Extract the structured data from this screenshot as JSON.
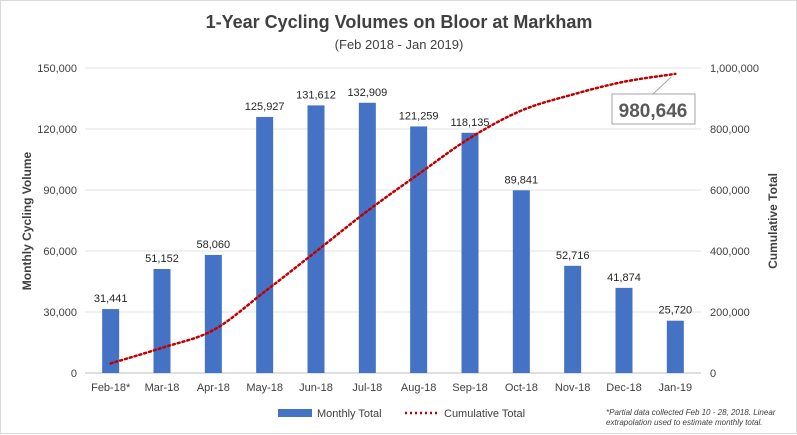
{
  "chart_data": {
    "type": "bar",
    "title": "1-Year Cycling Volumes on Bloor at Markham",
    "subtitle": "(Feb 2018  - Jan 2019)",
    "categories": [
      "Feb-18*",
      "Mar-18",
      "Apr-18",
      "May-18",
      "Jun-18",
      "Jul-18",
      "Aug-18",
      "Sep-18",
      "Oct-18",
      "Nov-18",
      "Dec-18",
      "Jan-19"
    ],
    "series": [
      {
        "name": "Monthly Total",
        "type": "bar",
        "axis": "left",
        "color": "#4472c4",
        "values": [
          31441,
          51152,
          58060,
          125927,
          131612,
          132909,
          121259,
          118135,
          89841,
          52716,
          41874,
          25720
        ],
        "labels": [
          "31,441",
          "51,152",
          "58,060",
          "125,927",
          "131,612",
          "132,909",
          "121,259",
          "118,135",
          "89,841",
          "52,716",
          "41,874",
          "25,720"
        ]
      },
      {
        "name": "Cumulative Total",
        "type": "line",
        "axis": "right",
        "color": "#c00000",
        "values": [
          31441,
          82593,
          140653,
          266580,
          398192,
          531101,
          652360,
          770495,
          860336,
          913052,
          954926,
          980646
        ]
      }
    ],
    "ylabel": "Monthly Cycling Volume",
    "y2label": "Cumulative Total",
    "ylim": [
      0,
      150000
    ],
    "y2lim": [
      0,
      1000000
    ],
    "yticks": [
      0,
      30000,
      60000,
      90000,
      120000,
      150000
    ],
    "ytick_labels": [
      "0",
      "30,000",
      "60,000",
      "90,000",
      "120,000",
      "150,000"
    ],
    "y2ticks": [
      0,
      200000,
      400000,
      600000,
      800000,
      1000000
    ],
    "y2tick_labels": [
      "0",
      "200,000",
      "400,000",
      "600,000",
      "800,000",
      "1,000,000"
    ],
    "grid": true,
    "legend_position": "bottom",
    "callout": "980,646",
    "footnote_lines": [
      "*Partial data collected Feb 10 - 28, 2018. Linear",
      "extrapolation used to estimate monthly total."
    ]
  }
}
